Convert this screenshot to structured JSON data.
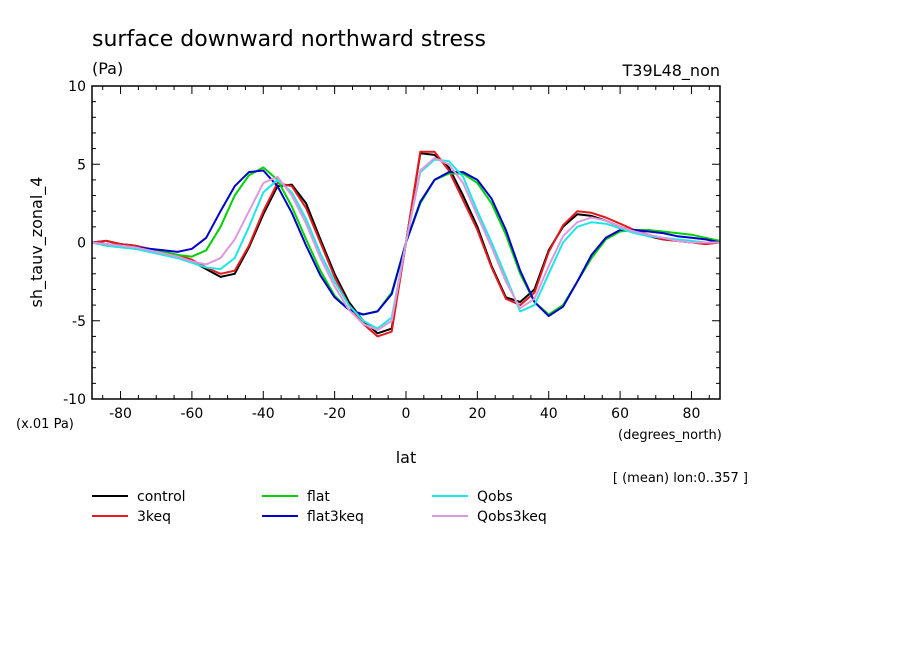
{
  "chart_data": {
    "type": "line",
    "title": "surface downward northward stress",
    "units": "(Pa)",
    "run_label": "T39L48_non",
    "ylabel": "sh_tauv_zonal_4",
    "yscale_note": "(x.01 Pa)",
    "xlabel": "lat",
    "x_unit_label": "(degrees_north)",
    "mean_note": "[ (mean) lon:0..357 ]",
    "xlim": [
      -88,
      88
    ],
    "ylim": [
      -10,
      10
    ],
    "x_ticks": [
      -80,
      -60,
      -40,
      -20,
      0,
      20,
      40,
      60,
      80
    ],
    "x_tick_labels": [
      "-80",
      "-60",
      "-40",
      "-20",
      "0",
      "20",
      "40",
      "60",
      "80"
    ],
    "y_ticks": [
      -10,
      -5,
      0,
      5,
      10
    ],
    "y_tick_labels": [
      "-10",
      "-5",
      "0",
      "5",
      "10"
    ],
    "x": [
      -88,
      -84,
      -80,
      -76,
      -72,
      -68,
      -64,
      -60,
      -56,
      -52,
      -48,
      -44,
      -40,
      -36,
      -32,
      -28,
      -24,
      -20,
      -16,
      -12,
      -8,
      -4,
      0,
      4,
      8,
      12,
      16,
      20,
      24,
      28,
      32,
      36,
      40,
      44,
      48,
      52,
      56,
      60,
      64,
      68,
      72,
      76,
      80,
      84,
      88
    ],
    "series": [
      {
        "name": "control",
        "color": "#000000",
        "values": [
          0,
          0.1,
          -0.1,
          -0.2,
          -0.4,
          -0.6,
          -0.8,
          -1.2,
          -1.7,
          -2.2,
          -2.0,
          -0.3,
          1.8,
          3.6,
          3.7,
          2.5,
          0.2,
          -2.0,
          -3.8,
          -5.0,
          -5.8,
          -5.5,
          0,
          5.7,
          5.6,
          4.8,
          3.0,
          1.0,
          -1.5,
          -3.5,
          -3.8,
          -3.0,
          -0.5,
          1.0,
          1.8,
          1.7,
          1.4,
          1.0,
          0.7,
          0.4,
          0.2,
          0.1,
          0,
          0,
          0
        ]
      },
      {
        "name": "3keq",
        "color": "#e41a1c",
        "values": [
          0,
          0.1,
          -0.1,
          -0.2,
          -0.4,
          -0.6,
          -0.8,
          -1.1,
          -1.6,
          -2.0,
          -1.8,
          -0.2,
          2.0,
          3.8,
          3.6,
          2.2,
          0,
          -2.2,
          -4.0,
          -5.2,
          -6.0,
          -5.7,
          0,
          5.8,
          5.8,
          4.6,
          2.7,
          0.8,
          -1.6,
          -3.6,
          -4.0,
          -3.2,
          -0.6,
          1.1,
          2.0,
          1.9,
          1.6,
          1.2,
          0.8,
          0.5,
          0.2,
          0.1,
          0,
          -0.1,
          0
        ]
      },
      {
        "name": "flat",
        "color": "#00d200",
        "values": [
          0,
          -0.2,
          -0.3,
          -0.4,
          -0.5,
          -0.6,
          -0.8,
          -0.9,
          -0.5,
          1.0,
          3.0,
          4.3,
          4.8,
          4.0,
          2.3,
          0.2,
          -1.8,
          -3.4,
          -4.3,
          -4.6,
          -4.4,
          -3.2,
          0,
          2.5,
          4.0,
          4.4,
          4.4,
          3.8,
          2.5,
          0.5,
          -2.0,
          -3.8,
          -4.6,
          -4.0,
          -2.5,
          -1.0,
          0.2,
          0.7,
          0.8,
          0.8,
          0.7,
          0.6,
          0.5,
          0.3,
          0.1
        ]
      },
      {
        "name": "flat3keq",
        "color": "#0000cd",
        "values": [
          0,
          -0.1,
          -0.2,
          -0.3,
          -0.4,
          -0.5,
          -0.6,
          -0.4,
          0.3,
          2.0,
          3.6,
          4.5,
          4.6,
          3.6,
          1.9,
          -0.2,
          -2.1,
          -3.5,
          -4.3,
          -4.6,
          -4.4,
          -3.3,
          0,
          2.6,
          4.0,
          4.5,
          4.5,
          4.0,
          2.8,
          0.8,
          -1.8,
          -3.8,
          -4.7,
          -4.1,
          -2.5,
          -0.8,
          0.3,
          0.8,
          0.8,
          0.7,
          0.6,
          0.4,
          0.3,
          0.2,
          0
        ]
      },
      {
        "name": "Qobs",
        "color": "#1ee6e6",
        "values": [
          0,
          -0.2,
          -0.3,
          -0.4,
          -0.6,
          -0.8,
          -1.0,
          -1.3,
          -1.6,
          -1.7,
          -1.0,
          1.0,
          3.2,
          4.0,
          3.2,
          1.5,
          -0.7,
          -2.5,
          -4.0,
          -5.0,
          -5.5,
          -4.8,
          0,
          4.5,
          5.3,
          5.2,
          4.2,
          2.0,
          0,
          -2.2,
          -4.4,
          -4.0,
          -2.0,
          0,
          1.0,
          1.3,
          1.2,
          0.9,
          0.6,
          0.4,
          0.3,
          0.2,
          0.1,
          0,
          0
        ]
      },
      {
        "name": "Qobs3keq",
        "color": "#dd99dd",
        "values": [
          0,
          -0.1,
          -0.2,
          -0.3,
          -0.5,
          -0.7,
          -0.9,
          -1.2,
          -1.4,
          -1.0,
          0.2,
          2.0,
          3.8,
          4.2,
          3.0,
          1.2,
          -1.0,
          -2.8,
          -4.3,
          -5.2,
          -5.6,
          -5.0,
          0,
          4.6,
          5.4,
          5.0,
          3.8,
          1.7,
          -0.3,
          -2.5,
          -4.2,
          -3.6,
          -1.5,
          0.4,
          1.3,
          1.6,
          1.4,
          1.0,
          0.7,
          0.5,
          0.3,
          0.1,
          0,
          0,
          0
        ]
      }
    ]
  }
}
